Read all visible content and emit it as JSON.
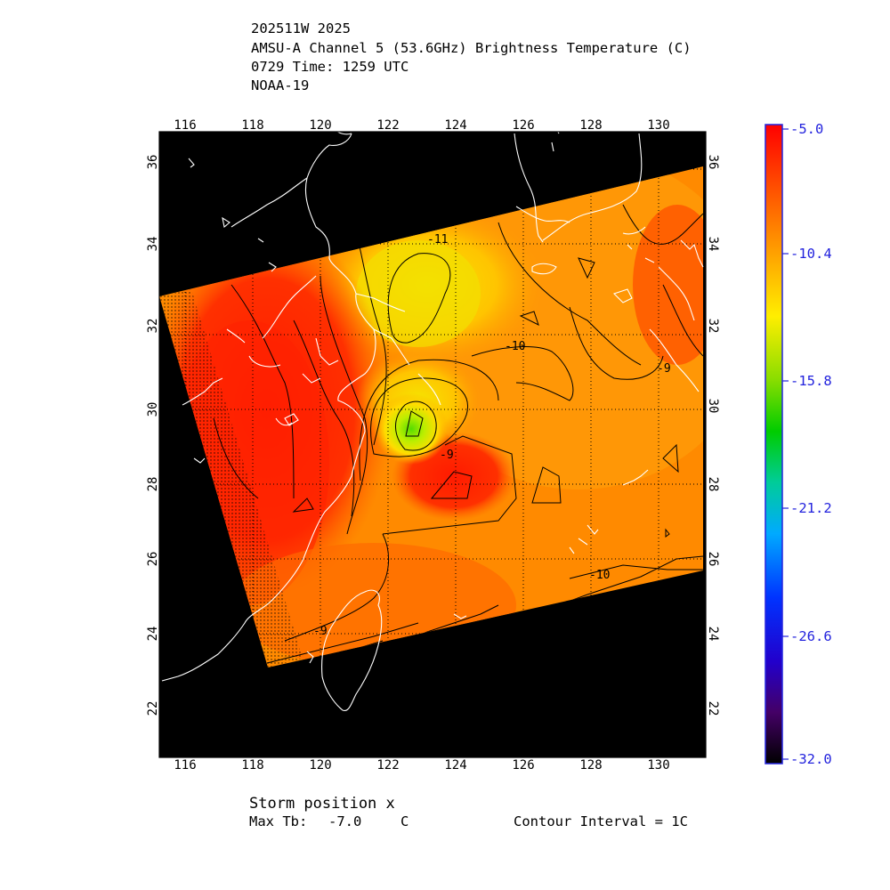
{
  "header": {
    "line1": "202511W 2025",
    "line2": "AMSU-A Channel 5 (53.6GHz) Brightness Temperature (C)",
    "line3": "0729 Time: 1259 UTC",
    "line4": "NOAA-19"
  },
  "map": {
    "lon_ticks": [
      "116",
      "118",
      "120",
      "122",
      "124",
      "126",
      "128",
      "130"
    ],
    "lat_ticks": [
      "22",
      "24",
      "26",
      "28",
      "30",
      "32",
      "34",
      "36"
    ],
    "contour_labels": [
      "-11",
      "-10",
      "-10",
      "-9",
      "-9",
      "-9"
    ]
  },
  "colorbar": {
    "labels": [
      "-5.0",
      "-10.4",
      "-15.8",
      "-21.2",
      "-26.6",
      "-32.0"
    ],
    "label_color": "#2222dd"
  },
  "footer": {
    "storm_position": "Storm position x",
    "max_tb_label": "Max Tb:",
    "max_tb_value": "-7.0",
    "max_tb_unit": "C",
    "contour_interval": "Contour Interval = 1C"
  }
}
